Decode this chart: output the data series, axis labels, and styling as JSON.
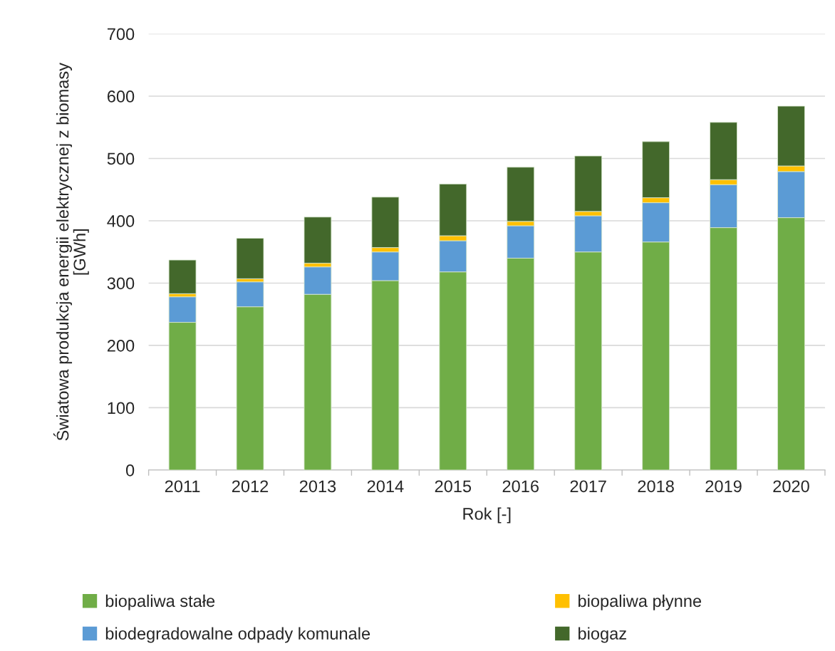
{
  "chart_data": {
    "type": "bar",
    "stacked": true,
    "xlabel": "Rok [-]",
    "ylabel": "Światowa produkcja energii elektrycznej z biomasy [GWh]",
    "categories": [
      "2011",
      "2012",
      "2013",
      "2014",
      "2015",
      "2016",
      "2017",
      "2018",
      "2019",
      "2020"
    ],
    "series": [
      {
        "name": "biopaliwa stałe",
        "color": "#70ad47",
        "values": [
          237,
          262,
          282,
          304,
          318,
          340,
          350,
          366,
          389,
          405
        ]
      },
      {
        "name": "biodegradowalne odpady komunale",
        "color": "#5b9bd5",
        "values": [
          41,
          40,
          44,
          46,
          50,
          52,
          58,
          63,
          69,
          74
        ]
      },
      {
        "name": "biopaliwa płynne",
        "color": "#ffc000",
        "values": [
          5,
          5,
          6,
          7,
          8,
          7,
          7,
          8,
          8,
          9
        ]
      },
      {
        "name": "biogaz",
        "color": "#43682b",
        "values": [
          54,
          65,
          74,
          81,
          83,
          87,
          89,
          90,
          92,
          96
        ]
      }
    ],
    "ylim": [
      0,
      700
    ],
    "yticks": [
      0,
      100,
      200,
      300,
      400,
      500,
      600,
      700
    ],
    "grid": "y",
    "legend": "bottom"
  }
}
